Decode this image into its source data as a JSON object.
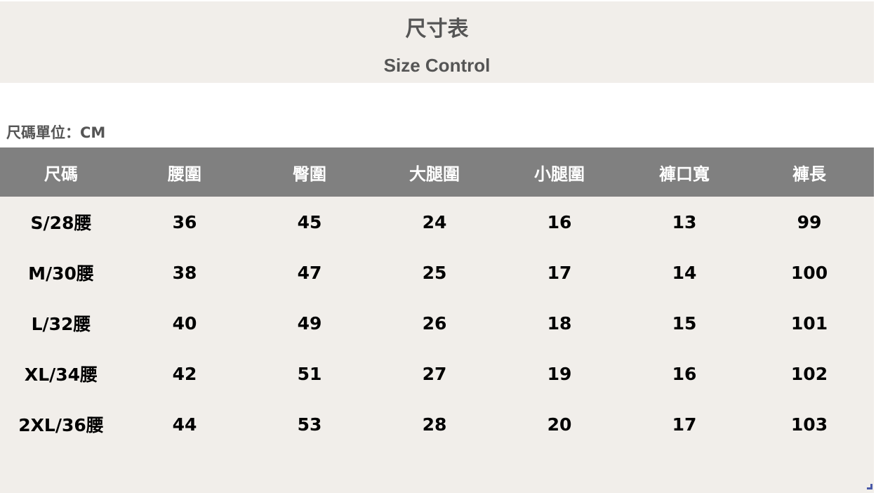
{
  "header": {
    "title": "尺寸表",
    "subtitle": "Size Control"
  },
  "unit_label": "尺碼單位：CM",
  "table": {
    "columns": [
      "尺碼",
      "腰圍",
      "臀圍",
      "大腿圍",
      "小腿圍",
      "褲口寬",
      "褲長"
    ],
    "rows": [
      [
        "S/28腰",
        "36",
        "45",
        "24",
        "16",
        "13",
        "99"
      ],
      [
        "M/30腰",
        "38",
        "47",
        "25",
        "17",
        "14",
        "100"
      ],
      [
        "L/32腰",
        "40",
        "49",
        "26",
        "18",
        "15",
        "101"
      ],
      [
        "XL/34腰",
        "42",
        "51",
        "27",
        "19",
        "16",
        "102"
      ],
      [
        "2XL/36腰",
        "44",
        "53",
        "28",
        "20",
        "17",
        "103"
      ]
    ]
  },
  "colors": {
    "header_bg": "#f1eeea",
    "table_header_bg": "#808080",
    "text": "#555555"
  }
}
